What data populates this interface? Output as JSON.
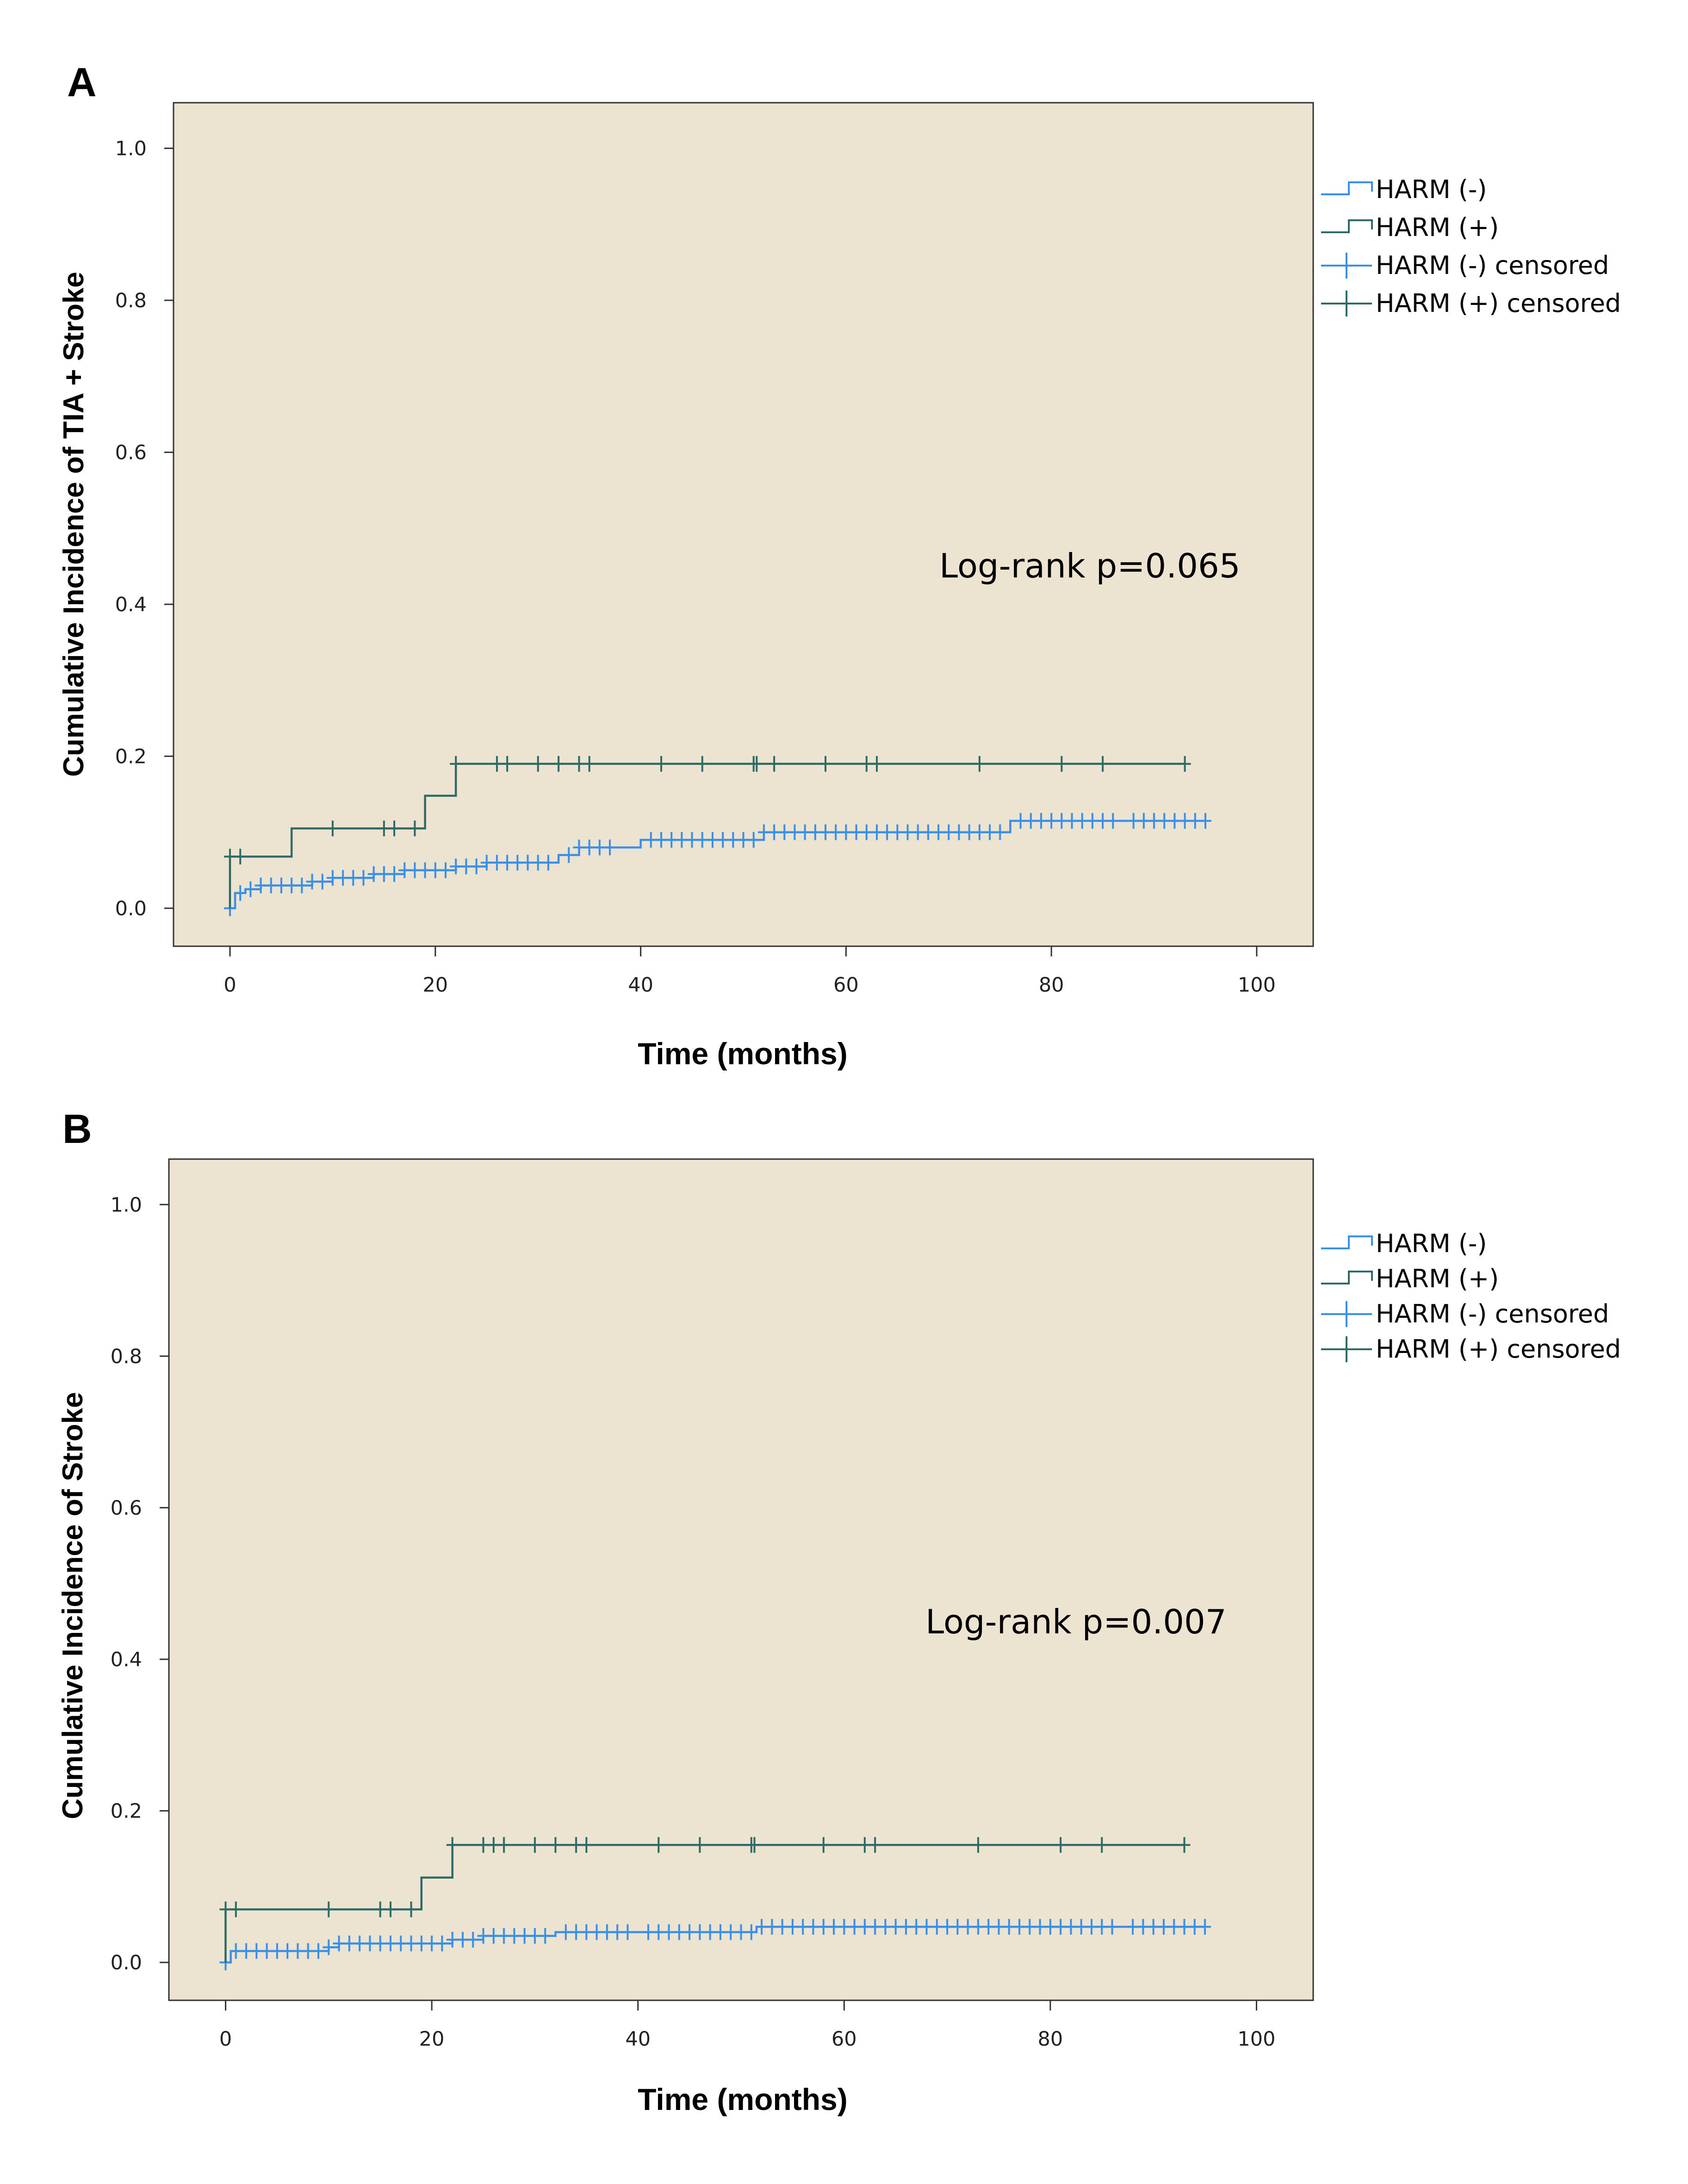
{
  "colors": {
    "plot_bg": "#ece4d0",
    "axis": "#333333",
    "harm_neg": "#3a8fe8",
    "harm_pos": "#2e6b66"
  },
  "chart_data": [
    {
      "panel": "A",
      "type": "line",
      "title": "",
      "xlabel": "Time (months)",
      "ylabel": "Cumulative Incidence of TIA + Stroke",
      "xlim": [
        -5.5,
        105.5
      ],
      "ylim": [
        -0.05,
        1.06
      ],
      "xticks": [
        0,
        20,
        40,
        60,
        80,
        100
      ],
      "yticks": [
        "0.0",
        "0.2",
        "0.4",
        "0.6",
        "0.8",
        "1.0"
      ],
      "annotation": "Log-rank p=0.065",
      "legend": [
        "HARM (-)",
        "HARM (+)",
        "HARM (-) censored",
        "HARM (+) censored"
      ],
      "legend_position": "right-top",
      "series": [
        {
          "name": "HARM (-)",
          "color": "#3a8fe8",
          "steps": [
            [
              0,
              0
            ],
            [
              0.5,
              0.02
            ],
            [
              1.5,
              0.025
            ],
            [
              3,
              0.03
            ],
            [
              8,
              0.035
            ],
            [
              10,
              0.04
            ],
            [
              14,
              0.045
            ],
            [
              17,
              0.05
            ],
            [
              22,
              0.055
            ],
            [
              25,
              0.06
            ],
            [
              32,
              0.07
            ],
            [
              34,
              0.08
            ],
            [
              40,
              0.09
            ],
            [
              52,
              0.1
            ],
            [
              76,
              0.115
            ],
            [
              95,
              0.115
            ]
          ],
          "censored": [
            0,
            1,
            2,
            3,
            4,
            5,
            6,
            7,
            8,
            9,
            10,
            11,
            12,
            13,
            14,
            15,
            16,
            17,
            18,
            19,
            20,
            21,
            22,
            23,
            24,
            25,
            26,
            27,
            28,
            29,
            30,
            31,
            33,
            34,
            35,
            36,
            37,
            41,
            42,
            43,
            44,
            45,
            46,
            47,
            48,
            49,
            50,
            51,
            52,
            53,
            54,
            55,
            56,
            57,
            58,
            59,
            60,
            61,
            62,
            63,
            64,
            65,
            66,
            67,
            68,
            69,
            70,
            71,
            72,
            73,
            74,
            75,
            77,
            78,
            79,
            80,
            81,
            82,
            83,
            84,
            85,
            86,
            88,
            89,
            90,
            91,
            92,
            93,
            94,
            95
          ]
        },
        {
          "name": "HARM (+)",
          "color": "#2e6b66",
          "steps": [
            [
              0,
              0
            ],
            [
              0,
              0.068
            ],
            [
              6,
              0.105
            ],
            [
              19,
              0.148
            ],
            [
              22,
              0.19
            ],
            [
              93,
              0.19
            ]
          ],
          "censored": [
            0,
            1,
            10,
            15,
            16,
            18,
            22,
            26,
            27,
            30,
            32,
            34,
            35,
            42,
            46,
            51,
            51.3,
            53,
            58,
            62,
            63,
            73,
            81,
            85,
            93
          ]
        }
      ]
    },
    {
      "panel": "B",
      "type": "line",
      "title": "",
      "xlabel": "Time (months)",
      "ylabel": "Cumulative Incidence of Stroke",
      "xlim": [
        -5.5,
        105.5
      ],
      "ylim": [
        -0.05,
        1.06
      ],
      "xticks": [
        0,
        20,
        40,
        60,
        80,
        100
      ],
      "yticks": [
        "0.0",
        "0.2",
        "0.4",
        "0.6",
        "0.8",
        "1.0"
      ],
      "annotation": "Log-rank p=0.007",
      "legend": [
        "HARM (-)",
        "HARM (+)",
        "HARM (-) censored",
        "HARM (+) censored"
      ],
      "legend_position": "right-top",
      "series": [
        {
          "name": "HARM (-)",
          "color": "#3a8fe8",
          "steps": [
            [
              0,
              0
            ],
            [
              0.5,
              0.015
            ],
            [
              10,
              0.02
            ],
            [
              11,
              0.025
            ],
            [
              22,
              0.03
            ],
            [
              25,
              0.035
            ],
            [
              32,
              0.04
            ],
            [
              51.5,
              0.047
            ],
            [
              95,
              0.047
            ]
          ],
          "censored": [
            0,
            1,
            2,
            3,
            4,
            5,
            6,
            7,
            8,
            9,
            10,
            11,
            12,
            13,
            14,
            15,
            16,
            17,
            18,
            19,
            20,
            21,
            22,
            23,
            24,
            25,
            26,
            27,
            28,
            29,
            30,
            31,
            33,
            34,
            35,
            36,
            37,
            38,
            39,
            41,
            42,
            43,
            44,
            45,
            46,
            47,
            48,
            49,
            50,
            51,
            52,
            53,
            54,
            55,
            56,
            57,
            58,
            59,
            60,
            61,
            62,
            63,
            64,
            65,
            66,
            67,
            68,
            69,
            70,
            71,
            72,
            73,
            74,
            75,
            76,
            77,
            78,
            79,
            80,
            81,
            82,
            83,
            84,
            85,
            86,
            88,
            89,
            90,
            91,
            92,
            93,
            94,
            95
          ]
        },
        {
          "name": "HARM (+)",
          "color": "#2e6b66",
          "steps": [
            [
              0,
              0
            ],
            [
              0,
              0.07
            ],
            [
              18,
              0.07
            ],
            [
              19,
              0.112
            ],
            [
              22,
              0.155
            ],
            [
              93,
              0.155
            ]
          ],
          "censored": [
            0,
            1,
            10,
            15,
            16,
            18,
            22,
            25,
            26,
            27,
            30,
            32,
            34,
            35,
            42,
            46,
            51,
            51.3,
            58,
            62,
            63,
            73,
            81,
            85,
            93
          ]
        }
      ]
    }
  ]
}
